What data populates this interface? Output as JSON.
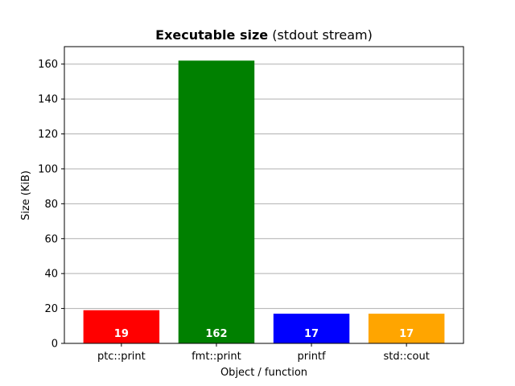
{
  "chart_data": {
    "type": "bar",
    "title_bold": "Executable size",
    "title_rest": " (stdout stream)",
    "xlabel": "Object / function",
    "ylabel": "Size (KiB)",
    "categories": [
      "ptc::print",
      "fmt::print",
      "printf",
      "std::cout"
    ],
    "values": [
      19,
      162,
      17,
      17
    ],
    "data_labels": [
      "19",
      "162",
      "17",
      "17"
    ],
    "colors": [
      "#ff0000",
      "#008000",
      "#0000ff",
      "#ffa500"
    ],
    "ylim": [
      0,
      170
    ],
    "yticks": [
      0,
      20,
      40,
      60,
      80,
      100,
      120,
      140,
      160
    ],
    "grid": "horizontal",
    "legend": "none"
  }
}
